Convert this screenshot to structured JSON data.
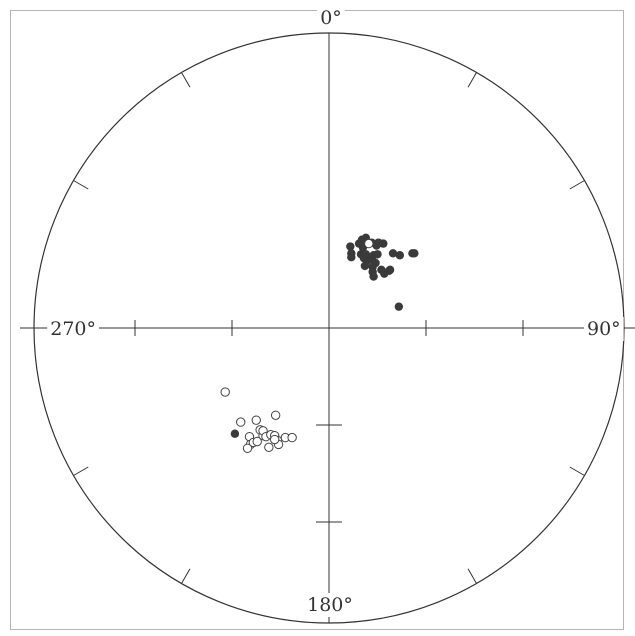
{
  "chart_data": {
    "type": "scatter",
    "projection": "stereonet",
    "direction_labels": {
      "north": "0°",
      "east": "90°",
      "south": "180°",
      "west": "270°"
    },
    "colors": {
      "solid": "#3a3a3a",
      "open": "#444444",
      "line": "#333333"
    },
    "series": [
      {
        "marker": "filled-circle",
        "points": [
          [
            0.22,
            0.84
          ],
          [
            0.23,
            0.77
          ],
          [
            0.23,
            0.73
          ],
          [
            0.31,
            0.87
          ],
          [
            0.33,
            0.76
          ],
          [
            0.34,
            0.91
          ],
          [
            0.35,
            0.83
          ],
          [
            0.36,
            0.72
          ],
          [
            0.37,
            0.64
          ],
          [
            0.38,
            0.93
          ],
          [
            0.38,
            0.76
          ],
          [
            0.39,
            0.69
          ],
          [
            0.44,
            0.88
          ],
          [
            0.44,
            0.71
          ],
          [
            0.45,
            0.63
          ],
          [
            0.45,
            0.58
          ],
          [
            0.46,
            0.53
          ],
          [
            0.46,
            0.75
          ],
          [
            0.48,
            0.67
          ],
          [
            0.49,
            0.85
          ],
          [
            0.5,
            0.76
          ],
          [
            0.51,
            0.88
          ],
          [
            0.54,
            0.6
          ],
          [
            0.56,
            0.87
          ],
          [
            0.57,
            0.56
          ],
          [
            0.62,
            0.59
          ],
          [
            0.63,
            0.6
          ],
          [
            0.66,
            0.77
          ],
          [
            0.73,
            0.75
          ],
          [
            0.86,
            0.77
          ],
          [
            0.88,
            0.77
          ],
          [
            0.72,
            0.22
          ],
          [
            -0.97,
            -1.09
          ]
        ]
      },
      {
        "marker": "open-circle",
        "points": [
          [
            -1.07,
            -0.66
          ],
          [
            -0.91,
            -0.97
          ],
          [
            -0.75,
            -0.95
          ],
          [
            -0.55,
            -0.9
          ],
          [
            -0.71,
            -1.05
          ],
          [
            -0.68,
            -1.11
          ],
          [
            -0.68,
            -1.06
          ],
          [
            -0.65,
            -1.12
          ],
          [
            -0.82,
            -1.12
          ],
          [
            -0.81,
            -1.2
          ],
          [
            -0.78,
            -1.18
          ],
          [
            -0.74,
            -1.17
          ],
          [
            -0.6,
            -1.1
          ],
          [
            -0.56,
            -1.11
          ],
          [
            -0.53,
            -1.16
          ],
          [
            -0.45,
            -1.13
          ],
          [
            -0.38,
            -1.13
          ],
          [
            -0.62,
            -1.23
          ],
          [
            -0.52,
            -1.2
          ],
          [
            -0.56,
            -1.15
          ],
          [
            -0.84,
            -1.24
          ]
        ]
      },
      {
        "marker": "open-circle",
        "points": [
          [
            0.41,
            0.87
          ]
        ]
      }
    ]
  }
}
